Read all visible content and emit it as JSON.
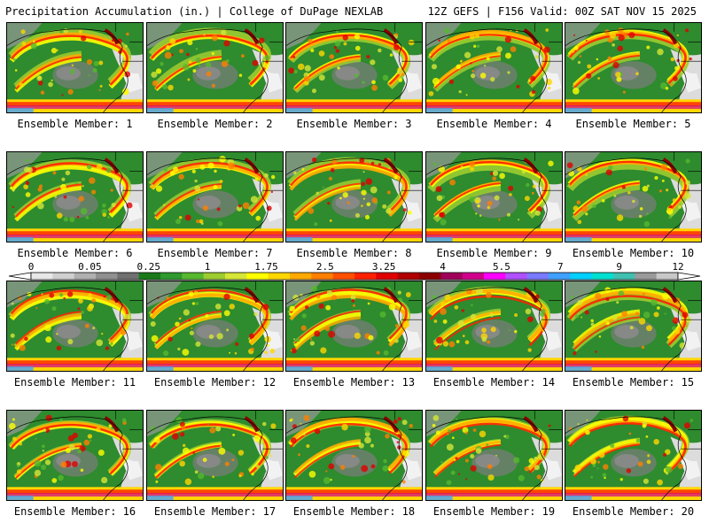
{
  "header": {
    "left": "Precipitation Accumulation (in.) | College of DuPage NEXLAB",
    "right": "12Z GEFS | F156 Valid: 00Z SAT NOV 15 2025"
  },
  "members": [
    "Ensemble Member: 1",
    "Ensemble Member: 2",
    "Ensemble Member: 3",
    "Ensemble Member: 4",
    "Ensemble Member: 5",
    "Ensemble Member: 6",
    "Ensemble Member: 7",
    "Ensemble Member: 8",
    "Ensemble Member: 9",
    "Ensemble Member: 10",
    "Ensemble Member: 11",
    "Ensemble Member: 12",
    "Ensemble Member: 13",
    "Ensemble Member: 14",
    "Ensemble Member: 15",
    "Ensemble Member: 16",
    "Ensemble Member: 17",
    "Ensemble Member: 18",
    "Ensemble Member: 19",
    "Ensemble Member: 20"
  ],
  "colorbar": {
    "tick_labels": [
      "0",
      "0.05",
      "0.25",
      "1",
      "1.75",
      "2.5",
      "3.25",
      "4",
      "5.5",
      "7",
      "9",
      "12"
    ],
    "colors": [
      "#e8e8e8",
      "#d0d0d0",
      "#b0b0b0",
      "#909090",
      "#707070",
      "#1a7a1a",
      "#2e9a2e",
      "#56b82e",
      "#9ccc30",
      "#d6e636",
      "#ffff00",
      "#ffd700",
      "#ffaa00",
      "#ff7f00",
      "#ff5000",
      "#ff2000",
      "#e00000",
      "#b00000",
      "#8b0000",
      "#a0005a",
      "#d0008c",
      "#ff00ff",
      "#b050ff",
      "#7a7aff",
      "#40a0ff",
      "#00d0ff",
      "#00e0d0",
      "#40c0b0",
      "#9a9a9a",
      "#c8c8c8"
    ]
  }
}
